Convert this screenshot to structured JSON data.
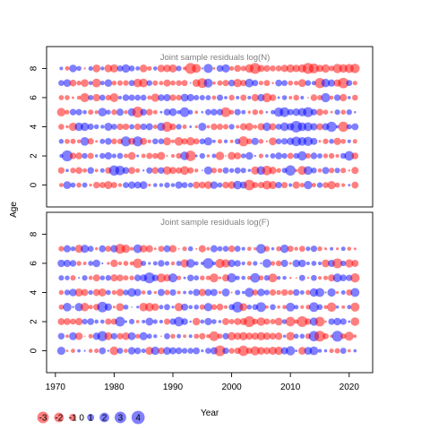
{
  "chart_data": {
    "type": "scatter",
    "subtype": "bubble",
    "ylabel": "Age",
    "xlabel": "Year",
    "x_ticks": [
      1970,
      1980,
      1990,
      2000,
      2010,
      2020
    ],
    "y_ticks": [
      0,
      2,
      4,
      6,
      8
    ],
    "xlim": [
      1968.5,
      2024
    ],
    "ylim": [
      -1.5,
      9.5
    ],
    "colors": {
      "positive": "#0000ff",
      "negative": "#ff0000"
    },
    "bubble_opacity": 0.5,
    "panels": [
      {
        "title": "Joint sample residuals log(N)",
        "years": [
          1971,
          2021
        ],
        "ages": [
          0,
          1,
          2,
          3,
          4,
          5,
          6,
          7,
          8
        ],
        "residual_range": [
          -3,
          4
        ],
        "pattern": "mixed; predominantly negative (red) at age 8 from ~2000 onward, large positive (blue) residuals near 2008-2014 at ages 3-5",
        "seed": 11
      },
      {
        "title": "Joint sample residuals log(F)",
        "years": [
          1971,
          2021
        ],
        "ages": [
          0,
          1,
          2,
          3,
          4,
          5,
          6,
          7
        ],
        "residual_range": [
          -3,
          4
        ],
        "pattern": "mixed positive and negative; large negative residuals at ages 0-2 around 2000-2008",
        "seed": 29
      }
    ],
    "legend": {
      "placement": "bottom-left",
      "entries": [
        {
          "label": "-3",
          "value": -3
        },
        {
          "label": "-2",
          "value": -2
        },
        {
          "label": "-1",
          "value": -1
        },
        {
          "label": "0",
          "value": 0
        },
        {
          "label": "1",
          "value": 1
        },
        {
          "label": "2",
          "value": 2
        },
        {
          "label": "3",
          "value": 3
        },
        {
          "label": "4",
          "value": 4
        }
      ]
    }
  }
}
